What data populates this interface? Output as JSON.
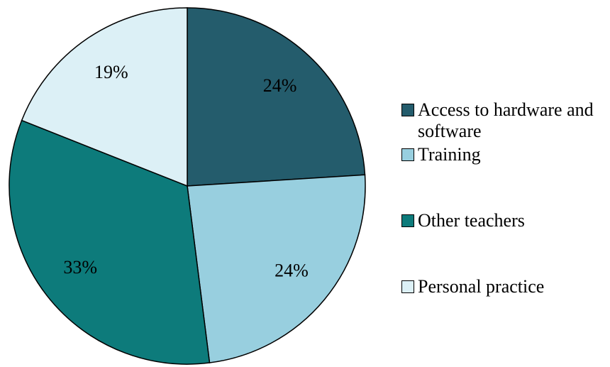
{
  "chart_data": {
    "type": "pie",
    "categories": [
      "Access to hardware and software",
      "Training",
      "Other teachers",
      "Personal practice"
    ],
    "values": [
      24,
      24,
      33,
      19
    ],
    "value_labels": [
      "24%",
      "24%",
      "33%",
      "19%"
    ],
    "colors": [
      "#245c6c",
      "#98cfdf",
      "#0d7b7b",
      "#dcf0f6"
    ],
    "legend": "right"
  }
}
